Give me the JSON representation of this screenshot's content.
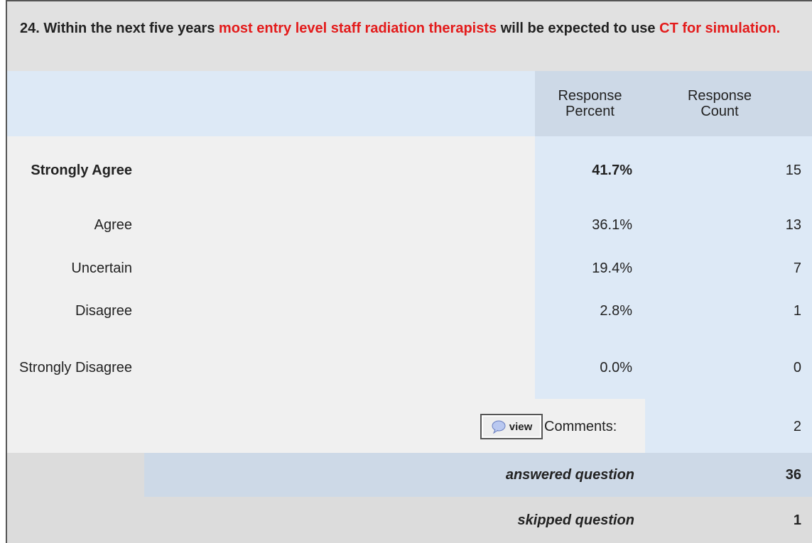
{
  "question": {
    "segments": [
      {
        "text": "24. Within the next five years ",
        "highlight": false
      },
      {
        "text": "most entry level staff radiation therapists",
        "highlight": true
      },
      {
        "text": " will be expected to use ",
        "highlight": false
      },
      {
        "text": "CT for simulation.",
        "highlight": true
      }
    ]
  },
  "table": {
    "headers": [
      "Response Percent",
      "Response Count"
    ],
    "rows": [
      {
        "label": "Strongly Agree",
        "percent": "41.7%",
        "count": 15
      },
      {
        "label": "Agree",
        "percent": "36.1%",
        "count": 13
      },
      {
        "label": "Uncertain",
        "percent": "19.4%",
        "count": 7
      },
      {
        "label": "Disagree",
        "percent": "2.8%",
        "count": 1
      },
      {
        "label": "Strongly Disagree",
        "percent": "0.0%",
        "count": 0
      }
    ],
    "comments": {
      "button": "view",
      "label": "Comments:",
      "count": 2
    },
    "answered": {
      "label": "answered question",
      "count": 36
    },
    "skipped": {
      "label": "skipped question",
      "count": 1
    }
  }
}
